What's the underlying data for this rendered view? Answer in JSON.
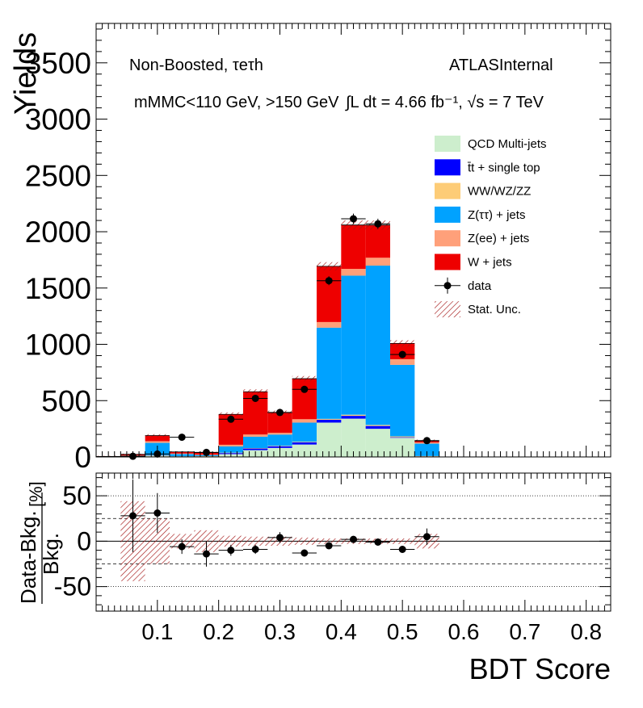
{
  "chart_data": [
    {
      "type": "bar",
      "stacked": true,
      "ylabel": "Yields",
      "xlim": [
        0,
        0.84
      ],
      "ylim": [
        0,
        3850
      ],
      "yticks": [
        "0",
        "500",
        "1000",
        "1500",
        "2000",
        "2500",
        "3000",
        "3500"
      ],
      "ytick_values": [
        0,
        500,
        1000,
        1500,
        2000,
        2500,
        3000,
        3500
      ],
      "bin_edges": [
        0.0,
        0.04,
        0.08,
        0.12,
        0.16,
        0.2,
        0.24,
        0.28,
        0.32,
        0.36,
        0.4,
        0.44,
        0.48,
        0.52,
        0.56,
        0.6,
        0.64,
        0.68,
        0.72,
        0.76,
        0.8,
        0.84
      ],
      "series": [
        {
          "name": "QCD Multi-jets",
          "color": "#cdeecd",
          "values": [
            0,
            2,
            10,
            3,
            4,
            25,
            60,
            80,
            110,
            305,
            340,
            250,
            170,
            0,
            0,
            0,
            0,
            0,
            0,
            0,
            0
          ]
        },
        {
          "name": "t̄t + single top",
          "color": "#0000ff",
          "values": [
            0,
            1,
            4,
            2,
            2,
            10,
            15,
            15,
            20,
            25,
            25,
            25,
            5,
            5,
            0,
            0,
            0,
            0,
            0,
            0,
            0
          ]
        },
        {
          "name": "WW/WZ/ZZ",
          "color": "#fdcc77",
          "values": [
            0,
            0,
            1,
            1,
            1,
            3,
            4,
            4,
            5,
            8,
            10,
            9,
            8,
            3,
            0,
            0,
            0,
            0,
            0,
            0,
            0
          ]
        },
        {
          "name": "Z(ττ) + jets",
          "color": "#00a2ff",
          "values": [
            2,
            8,
            110,
            20,
            10,
            55,
            100,
            100,
            170,
            810,
            1235,
            1415,
            635,
            110,
            0,
            0,
            0,
            0,
            0,
            0,
            0
          ]
        },
        {
          "name": "Z(ee) + jets",
          "color": "#ffa07a",
          "values": [
            1,
            2,
            15,
            4,
            3,
            15,
            20,
            15,
            30,
            50,
            60,
            70,
            50,
            10,
            0,
            0,
            0,
            0,
            0,
            0,
            0
          ]
        },
        {
          "name": "W + jets",
          "color": "#ee0000",
          "values": [
            1,
            10,
            50,
            15,
            20,
            270,
            380,
            180,
            360,
            495,
            390,
            290,
            140,
            15,
            0,
            0,
            0,
            0,
            0,
            0,
            0
          ]
        }
      ],
      "data_series": {
        "name": "data",
        "x": [
          0.06,
          0.1,
          0.14,
          0.18,
          0.22,
          0.26,
          0.3,
          0.34,
          0.38,
          0.42,
          0.46,
          0.5,
          0.54
        ],
        "y": [
          6,
          26,
          175,
          40,
          335,
          520,
          395,
          600,
          1565,
          2115,
          2070,
          910,
          145
        ]
      },
      "legend": {
        "placement": "right",
        "entries": [
          {
            "label": "QCD Multi-jets",
            "swatch": "#cdeecd"
          },
          {
            "label": "t̄t + single top",
            "swatch": "#0000ff"
          },
          {
            "label": "WW/WZ/ZZ",
            "swatch": "#fdcc77"
          },
          {
            "label": "Z(ττ) + jets",
            "swatch": "#00a2ff"
          },
          {
            "label": "Z(ee) + jets",
            "swatch": "#ffa07a"
          },
          {
            "label": "W + jets",
            "swatch": "#ee0000"
          },
          {
            "label": "data",
            "swatch": "marker"
          },
          {
            "label": "Stat. Unc.",
            "swatch": "hatch"
          }
        ]
      },
      "annotations": {
        "channel": "Non-Boosted,  τeτh",
        "atlas": "ATLASInternal",
        "cuts": "mMMC<110 GeV, >150 GeV",
        "lumi": "∫L dt = 4.66 fb⁻¹,  √s = 7 TeV"
      }
    },
    {
      "type": "scatter",
      "ylabel": "Data-Bkg. / Bkg. [%]",
      "ylabel_numerator": "Data-Bkg.",
      "ylabel_denominator": "Bkg.",
      "ylabel_unit": "[%]",
      "xlabel": "BDT Score",
      "xlim": [
        0,
        0.84
      ],
      "ylim": [
        -77,
        75
      ],
      "yticks": [
        "50",
        "0",
        "-50"
      ],
      "ytick_values": [
        50,
        0,
        -50
      ],
      "xticks": [
        "0.1",
        "0.2",
        "0.3",
        "0.4",
        "0.5",
        "0.6",
        "0.7",
        "0.8"
      ],
      "xtick_values": [
        0.1,
        0.2,
        0.3,
        0.4,
        0.5,
        0.6,
        0.7,
        0.8
      ],
      "reference_lines": {
        "dotted": [
          50,
          -50
        ],
        "dashed": [
          25,
          -25
        ],
        "solid": [
          0
        ]
      },
      "x": [
        0.06,
        0.1,
        0.14,
        0.18,
        0.22,
        0.26,
        0.3,
        0.34,
        0.38,
        0.42,
        0.46,
        0.5,
        0.54
      ],
      "y": [
        28,
        31,
        -6,
        -14,
        -10,
        -9,
        4,
        -13,
        -5,
        2,
        -1,
        -9,
        5
      ],
      "yerr": [
        40,
        22,
        8,
        14,
        6,
        5,
        6,
        4,
        3,
        3,
        3,
        3,
        9
      ],
      "unc_band": [
        44,
        25,
        8,
        12,
        6,
        5,
        5,
        4,
        3,
        3,
        3,
        3,
        8
      ]
    }
  ]
}
